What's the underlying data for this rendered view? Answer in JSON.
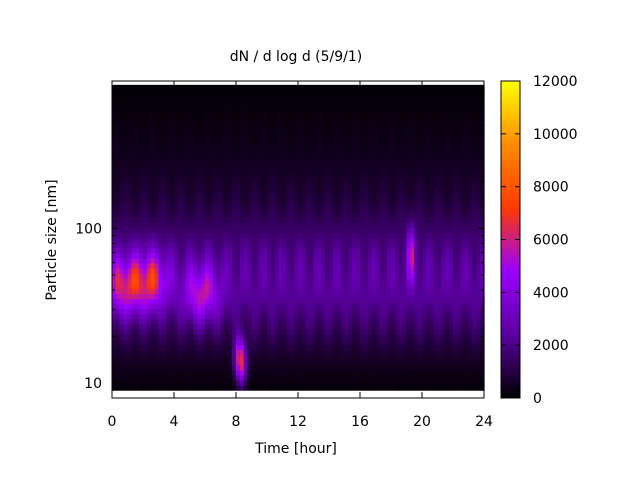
{
  "chart_data": {
    "type": "heatmap",
    "title": "dN / d log d (5/9/1)",
    "xlabel": "Time [hour]",
    "ylabel": "Particle size [nm]",
    "xlim": [
      0,
      24
    ],
    "ylim": [
      8,
      900
    ],
    "yscale": "log",
    "x_ticks": [
      0,
      4,
      8,
      12,
      16,
      20,
      24
    ],
    "x_tick_labels": [
      "0",
      "4",
      "8",
      "12",
      "16",
      "20",
      "24"
    ],
    "y_major_ticks": [
      10,
      100
    ],
    "y_tick_labels": [
      "10",
      "100"
    ],
    "colorbar": {
      "range": [
        0,
        12000
      ],
      "ticks": [
        0,
        2000,
        4000,
        6000,
        8000,
        10000,
        12000
      ],
      "tick_labels": [
        "0",
        "2000",
        "4000",
        "6000",
        "8000",
        "10000",
        "12000"
      ],
      "palette": [
        "#000000",
        "#5a00a0",
        "#9a00ff",
        "#ff3a00",
        "#ff8c00",
        "#ffff00"
      ]
    },
    "data_coverage": {
      "x_range": [
        0,
        24
      ],
      "d_range": [
        9,
        850
      ]
    },
    "features": [
      {
        "time_h": 0.8,
        "diameter_nm": 43,
        "value": 6500
      },
      {
        "time_h": 2.5,
        "diameter_nm": 46,
        "value": 6800
      },
      {
        "time_h": 5.8,
        "diameter_nm": 38,
        "value": 6000
      },
      {
        "time_h": 8.3,
        "diameter_nm": 14,
        "value": 9500
      },
      {
        "time_h": 19.3,
        "diameter_nm": 70,
        "value": 5800
      }
    ],
    "grid": false
  }
}
